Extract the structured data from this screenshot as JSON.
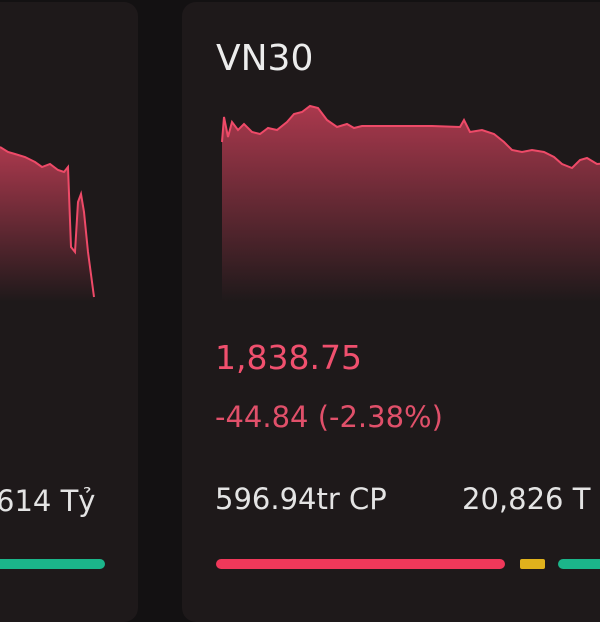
{
  "left_card": {
    "turnover": "614 Tỷ"
  },
  "right_card": {
    "title": "VN30",
    "price": "1,838.75",
    "change": "-44.84 (-2.38%)",
    "volume": "596.94tr CP",
    "turnover": "20,826 T"
  }
}
